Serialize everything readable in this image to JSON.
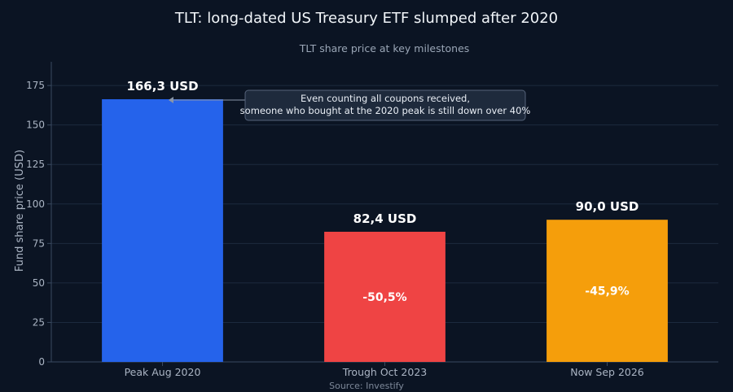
{
  "chart_data": {
    "type": "bar",
    "title": "TLT: long-dated US Treasury ETF slumped after 2020",
    "subtitle": "TLT share price at key milestones",
    "xlabel": "",
    "ylabel": "Fund share price (USD)",
    "source": "Source: Investify",
    "categories": [
      "Peak Aug 2020",
      "Trough Oct 2023",
      "Now Sep 2026"
    ],
    "values": [
      166.3,
      82.4,
      90.0
    ],
    "value_labels": [
      "166,3 USD",
      "82,4 USD",
      "90,0 USD"
    ],
    "change_labels": [
      "",
      "-50,5%",
      "-45,9%"
    ],
    "bar_colors": [
      "#2563eb",
      "#ef4444",
      "#f59e0b"
    ],
    "ylim": [
      0,
      190
    ],
    "yticks": [
      0,
      25,
      50,
      75,
      100,
      125,
      150,
      175
    ],
    "grid": true,
    "legend": "none",
    "annotation": {
      "lines": [
        "Even counting all coupons received,",
        "someone who bought at the 2020 peak is still down over 40%"
      ],
      "target_category": "Peak Aug 2020"
    },
    "colors": {
      "background": "#0b1423",
      "grid": "#1c2a3e",
      "axis": "#3a4a60",
      "tick_text": "#aab4c3",
      "title": "#f1f5f9",
      "subtitle": "#9aa6b6",
      "annotation_bg": "#1e2a3c",
      "annotation_border": "#55637a"
    }
  }
}
